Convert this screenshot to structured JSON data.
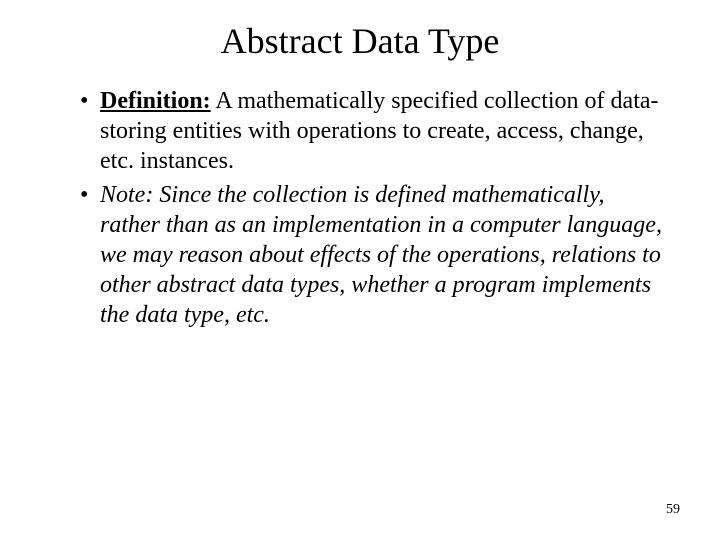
{
  "title": "Abstract Data Type",
  "bullets": [
    {
      "label": "Definition:",
      "text": " A mathematically specified collection of data-storing entities with operations to create, access, change, etc. instances."
    },
    {
      "noteLabel": "Note:",
      "noteText": " Since the collection is defined mathematically, rather than as an implementation in a computer language, we may reason about effects of the operations, relations to other abstract data types, whether a program implements the data type, etc."
    }
  ],
  "pageNumber": "59",
  "styling": {
    "background_color": "#ffffff",
    "text_color": "#000000",
    "title_fontsize": 36,
    "body_fontsize": 24,
    "page_number_fontsize": 14,
    "font_family": "Times New Roman"
  }
}
